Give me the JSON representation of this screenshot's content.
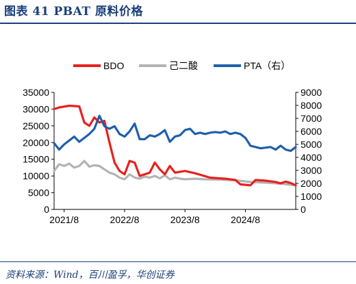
{
  "header": {
    "title": "图表 41    PBAT 原料价格"
  },
  "source": {
    "text": "资料来源：Wind，百川盈孚，华创证券"
  },
  "chart_data": {
    "type": "line",
    "legend": [
      "BDO",
      "己二酸",
      "PTA（右）"
    ],
    "legend_position": "top",
    "grid": false,
    "x_range": [
      "2021-06",
      "2025-06"
    ],
    "x_ticks": [
      "2021/8",
      "2022/8",
      "2023/8",
      "2024/8"
    ],
    "y_left": {
      "range": [
        0,
        35000
      ],
      "ticks": [
        "0",
        "5000",
        "10000",
        "15000",
        "20000",
        "25000",
        "30000",
        "35000"
      ]
    },
    "y_right": {
      "range": [
        0,
        9000
      ],
      "ticks": [
        "0",
        "1000",
        "2000",
        "3000",
        "4000",
        "5000",
        "6000",
        "7000",
        "8000",
        "9000"
      ]
    },
    "series": [
      {
        "name": "BDO",
        "axis": "left",
        "color": "#e8201e",
        "points": [
          [
            "2021-06",
            30000
          ],
          [
            "2021-07",
            30500
          ],
          [
            "2021-09",
            31000
          ],
          [
            "2021-11",
            30800
          ],
          [
            "2021-12",
            26000
          ],
          [
            "2022-01",
            25000
          ],
          [
            "2022-02",
            27500
          ],
          [
            "2022-03",
            26000
          ],
          [
            "2022-04",
            26500
          ],
          [
            "2022-05",
            20000
          ],
          [
            "2022-06",
            14000
          ],
          [
            "2022-07",
            11500
          ],
          [
            "2022-08",
            10500
          ],
          [
            "2022-09",
            14500
          ],
          [
            "2022-10",
            14000
          ],
          [
            "2022-11",
            10000
          ],
          [
            "2022-12",
            10500
          ],
          [
            "2023-01",
            11000
          ],
          [
            "2023-02",
            14000
          ],
          [
            "2023-03",
            12000
          ],
          [
            "2023-04",
            10500
          ],
          [
            "2023-05",
            13000
          ],
          [
            "2023-06",
            11000
          ],
          [
            "2023-08",
            11500
          ],
          [
            "2023-10",
            10800
          ],
          [
            "2024-01",
            9500
          ],
          [
            "2024-04",
            9200
          ],
          [
            "2024-06",
            8800
          ],
          [
            "2024-07",
            7500
          ],
          [
            "2024-09",
            7200
          ],
          [
            "2024-10",
            8800
          ],
          [
            "2024-12",
            8600
          ],
          [
            "2025-02",
            8200
          ],
          [
            "2025-03",
            7800
          ],
          [
            "2025-04",
            8300
          ],
          [
            "2025-05",
            7900
          ],
          [
            "2025-06",
            7200
          ]
        ]
      },
      {
        "name": "己二酸",
        "axis": "left",
        "color": "#b3b3b3",
        "points": [
          [
            "2021-06",
            11500
          ],
          [
            "2021-07",
            13500
          ],
          [
            "2021-08",
            13000
          ],
          [
            "2021-09",
            13700
          ],
          [
            "2021-10",
            12500
          ],
          [
            "2021-11",
            13000
          ],
          [
            "2021-12",
            14500
          ],
          [
            "2022-01",
            12800
          ],
          [
            "2022-02",
            13200
          ],
          [
            "2022-03",
            13000
          ],
          [
            "2022-04",
            12000
          ],
          [
            "2022-05",
            11000
          ],
          [
            "2022-06",
            10500
          ],
          [
            "2022-07",
            9500
          ],
          [
            "2022-08",
            9000
          ],
          [
            "2022-09",
            10500
          ],
          [
            "2022-10",
            9500
          ],
          [
            "2022-11",
            9200
          ],
          [
            "2022-12",
            9800
          ],
          [
            "2023-01",
            9500
          ],
          [
            "2023-02",
            10000
          ],
          [
            "2023-03",
            9300
          ],
          [
            "2023-04",
            10200
          ],
          [
            "2023-05",
            9000
          ],
          [
            "2023-06",
            9500
          ],
          [
            "2023-07",
            9200
          ],
          [
            "2023-08",
            9000
          ],
          [
            "2023-10",
            9200
          ],
          [
            "2023-12",
            9000
          ],
          [
            "2024-03",
            8900
          ],
          [
            "2024-06",
            8700
          ],
          [
            "2024-09",
            8200
          ],
          [
            "2024-12",
            8000
          ],
          [
            "2025-03",
            7700
          ],
          [
            "2025-06",
            7200
          ]
        ]
      },
      {
        "name": "PTA（右）",
        "axis": "right",
        "color": "#1f5faa",
        "points": [
          [
            "2021-06",
            5100
          ],
          [
            "2021-07",
            4600
          ],
          [
            "2021-08",
            5000
          ],
          [
            "2021-09",
            5300
          ],
          [
            "2021-10",
            5600
          ],
          [
            "2021-11",
            5200
          ],
          [
            "2021-12",
            5500
          ],
          [
            "2022-01",
            5800
          ],
          [
            "2022-02",
            6200
          ],
          [
            "2022-03",
            7200
          ],
          [
            "2022-04",
            6400
          ],
          [
            "2022-05",
            6200
          ],
          [
            "2022-06",
            6400
          ],
          [
            "2022-07",
            5800
          ],
          [
            "2022-08",
            5600
          ],
          [
            "2022-09",
            6000
          ],
          [
            "2022-10",
            6600
          ],
          [
            "2022-11",
            5400
          ],
          [
            "2022-12",
            5400
          ],
          [
            "2023-01",
            5700
          ],
          [
            "2023-02",
            5600
          ],
          [
            "2023-03",
            5800
          ],
          [
            "2023-04",
            6100
          ],
          [
            "2023-05",
            5200
          ],
          [
            "2023-06",
            5600
          ],
          [
            "2023-07",
            5700
          ],
          [
            "2023-08",
            6100
          ],
          [
            "2023-09",
            6200
          ],
          [
            "2023-10",
            5800
          ],
          [
            "2023-11",
            5900
          ],
          [
            "2023-12",
            5800
          ],
          [
            "2024-01",
            5900
          ],
          [
            "2024-02",
            5950
          ],
          [
            "2024-03",
            5900
          ],
          [
            "2024-04",
            6000
          ],
          [
            "2024-05",
            5800
          ],
          [
            "2024-06",
            5900
          ],
          [
            "2024-07",
            5800
          ],
          [
            "2024-08",
            5500
          ],
          [
            "2024-09",
            4900
          ],
          [
            "2024-10",
            4800
          ],
          [
            "2024-11",
            4700
          ],
          [
            "2024-12",
            4750
          ],
          [
            "2025-01",
            4800
          ],
          [
            "2025-02",
            4600
          ],
          [
            "2025-03",
            4900
          ],
          [
            "2025-04",
            4600
          ],
          [
            "2025-05",
            4500
          ],
          [
            "2025-06",
            4800
          ]
        ]
      }
    ]
  }
}
